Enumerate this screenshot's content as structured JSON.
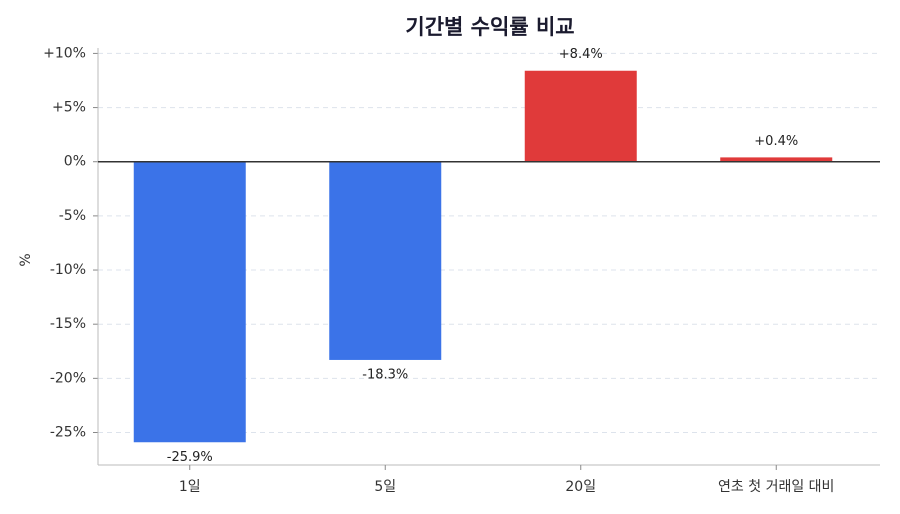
{
  "chart_data": {
    "type": "bar",
    "title": "기간별 수익률 비교",
    "ylabel": "%",
    "categories": [
      "1일",
      "5일",
      "20일",
      "연초 첫 거래일 대비"
    ],
    "values": [
      -25.9,
      -18.3,
      8.4,
      0.4
    ],
    "value_labels": [
      "-25.9%",
      "-18.3%",
      "+8.4%",
      "+0.4%"
    ],
    "colors": [
      "#3b73e8",
      "#3b73e8",
      "#e03a3a",
      "#e03a3a"
    ],
    "ylim": [
      -28,
      10.5
    ],
    "yticks": [
      {
        "value": -25,
        "label": "-25%"
      },
      {
        "value": -20,
        "label": "-20%"
      },
      {
        "value": -15,
        "label": "-15%"
      },
      {
        "value": -10,
        "label": "-10%"
      },
      {
        "value": -5,
        "label": "-5%"
      },
      {
        "value": 0,
        "label": "0%"
      },
      {
        "value": 5,
        "label": "+5%"
      },
      {
        "value": 10,
        "label": "+10%"
      }
    ],
    "grid": true
  }
}
